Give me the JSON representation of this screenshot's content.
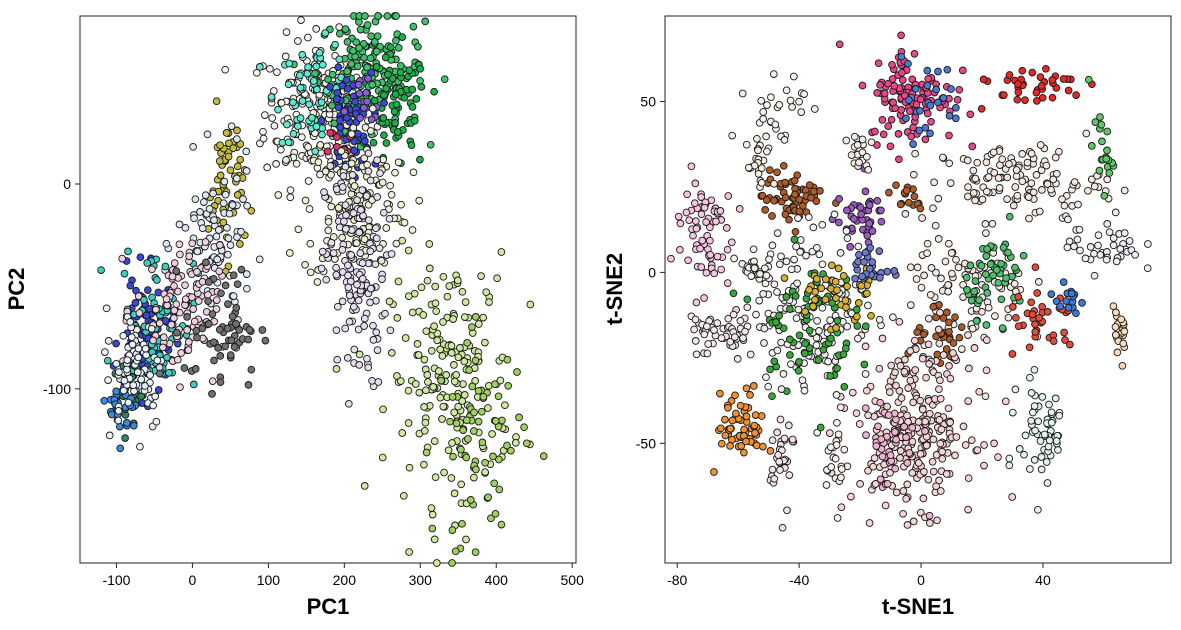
{
  "chart_data": [
    {
      "type": "scatter",
      "xlabel": "PC1",
      "ylabel": "PC2",
      "xlim": [
        -148,
        505
      ],
      "ylim": [
        -185,
        82
      ],
      "xticks": [
        -100,
        0,
        100,
        200,
        300,
        400,
        500
      ],
      "yticks": [
        -100,
        0
      ],
      "xtick_labels": [
        "-100",
        "0",
        "100",
        "200",
        "300",
        "400",
        "500"
      ],
      "ytick_labels": [
        "-100",
        "0"
      ],
      "grid": false,
      "clusters": [
        {
          "color": "#f4f4ec",
          "count": 220,
          "center": [
            165,
            35
          ],
          "spread": [
            35,
            18
          ]
        },
        {
          "color": "#3cc46a",
          "count": 170,
          "center": [
            235,
            55
          ],
          "spread": [
            35,
            14
          ]
        },
        {
          "color": "#1cae48",
          "count": 70,
          "center": [
            270,
            35
          ],
          "spread": [
            20,
            15
          ]
        },
        {
          "color": "#5ee8d0",
          "count": 60,
          "center": [
            160,
            45
          ],
          "spread": [
            25,
            12
          ]
        },
        {
          "color": "#3848d8",
          "count": 60,
          "center": [
            205,
            30
          ],
          "spread": [
            15,
            12
          ]
        },
        {
          "color": "#8a5ed8",
          "count": 15,
          "center": [
            225,
            35
          ],
          "spread": [
            12,
            10
          ]
        },
        {
          "color": "#e83060",
          "count": 10,
          "center": [
            195,
            18
          ],
          "spread": [
            8,
            6
          ]
        },
        {
          "color": "#ecf0d6",
          "count": 150,
          "center": [
            215,
            -10
          ],
          "spread": [
            35,
            20
          ]
        },
        {
          "color": "#e6dcf0",
          "count": 140,
          "center": [
            215,
            -45
          ],
          "spread": [
            20,
            28
          ]
        },
        {
          "color": "#d0e8a0",
          "count": 200,
          "center": [
            340,
            -95
          ],
          "spread": [
            40,
            30
          ]
        },
        {
          "color": "#a0d060",
          "count": 70,
          "center": [
            380,
            -125
          ],
          "spread": [
            30,
            25
          ]
        },
        {
          "color": "#c4bc40",
          "count": 55,
          "center": [
            45,
            0
          ],
          "spread": [
            12,
            18
          ]
        },
        {
          "color": "#dce8f4",
          "count": 90,
          "center": [
            30,
            -30
          ],
          "spread": [
            25,
            20
          ]
        },
        {
          "color": "#3848d8",
          "count": 90,
          "center": [
            -60,
            -75
          ],
          "spread": [
            18,
            15
          ]
        },
        {
          "color": "#3ccfc0",
          "count": 70,
          "center": [
            -45,
            -65
          ],
          "spread": [
            25,
            18
          ]
        },
        {
          "color": "#f0d0e0",
          "count": 110,
          "center": [
            -20,
            -62
          ],
          "spread": [
            28,
            16
          ]
        },
        {
          "color": "#707070",
          "count": 60,
          "center": [
            40,
            -70
          ],
          "spread": [
            25,
            15
          ]
        },
        {
          "color": "#2a8c60",
          "count": 40,
          "center": [
            -85,
            -100
          ],
          "spread": [
            10,
            10
          ]
        },
        {
          "color": "#3a8ae0",
          "count": 25,
          "center": [
            -90,
            -110
          ],
          "spread": [
            10,
            8
          ]
        },
        {
          "color": "#e8f0f8",
          "count": 70,
          "center": [
            -75,
            -90
          ],
          "spread": [
            20,
            15
          ]
        }
      ]
    },
    {
      "type": "scatter",
      "xlabel": "t-SNE1",
      "ylabel": "t-SNE2",
      "xlim": [
        -84,
        82
      ],
      "ylim": [
        -85,
        75
      ],
      "xticks": [
        -80,
        -40,
        0,
        40
      ],
      "yticks": [
        -50,
        0,
        50
      ],
      "xtick_labels": [
        "-80",
        "-40",
        "0",
        "40"
      ],
      "ytick_labels": [
        "-50",
        "0",
        "50"
      ],
      "grid": false,
      "clusters": [
        {
          "color": "#e8488a",
          "count": 110,
          "center": [
            -3,
            52
          ],
          "spread": [
            7,
            7
          ]
        },
        {
          "color": "#4a7ad8",
          "count": 25,
          "center": [
            2,
            50
          ],
          "spread": [
            6,
            6
          ]
        },
        {
          "color": "#e82828",
          "count": 40,
          "center": [
            35,
            55
          ],
          "spread": [
            10,
            3
          ]
        },
        {
          "color": "#f6f0e8",
          "count": 30,
          "center": [
            -48,
            48
          ],
          "spread": [
            5,
            6
          ]
        },
        {
          "color": "#f4e8e0",
          "count": 120,
          "center": [
            32,
            27
          ],
          "spread": [
            14,
            5
          ]
        },
        {
          "color": "#60c860",
          "count": 20,
          "center": [
            59,
            35
          ],
          "spread": [
            2,
            6
          ]
        },
        {
          "color": "#b05a28",
          "count": 60,
          "center": [
            -42,
            22
          ],
          "spread": [
            5,
            4
          ]
        },
        {
          "color": "#f5c4e0",
          "count": 70,
          "center": [
            -72,
            12
          ],
          "spread": [
            5,
            9
          ]
        },
        {
          "color": "#9a5ac0",
          "count": 40,
          "center": [
            -20,
            16
          ],
          "spread": [
            4,
            4
          ]
        },
        {
          "color": "#b05a28",
          "count": 15,
          "center": [
            -5,
            22
          ],
          "spread": [
            3,
            2
          ]
        },
        {
          "color": "#f6eede",
          "count": 20,
          "center": [
            -53,
            30
          ],
          "spread": [
            2,
            5
          ]
        },
        {
          "color": "#f0ecf4",
          "count": 40,
          "center": [
            60,
            8
          ],
          "spread": [
            6,
            4
          ]
        },
        {
          "color": "#f2f2f2",
          "count": 160,
          "center": [
            -35,
            -10
          ],
          "spread": [
            10,
            12
          ]
        },
        {
          "color": "#38a838",
          "count": 70,
          "center": [
            -38,
            -15
          ],
          "spread": [
            8,
            10
          ]
        },
        {
          "color": "#d8b030",
          "count": 40,
          "center": [
            -28,
            -5
          ],
          "spread": [
            7,
            6
          ]
        },
        {
          "color": "#6a7ad0",
          "count": 25,
          "center": [
            -16,
            1
          ],
          "spread": [
            3,
            3
          ]
        },
        {
          "color": "#f4e8e0",
          "count": 100,
          "center": [
            15,
            -5
          ],
          "spread": [
            10,
            10
          ]
        },
        {
          "color": "#50c070",
          "count": 50,
          "center": [
            25,
            0
          ],
          "spread": [
            5,
            6
          ]
        },
        {
          "color": "#b05a28",
          "count": 30,
          "center": [
            8,
            -20
          ],
          "spread": [
            6,
            4
          ]
        },
        {
          "color": "#e84a3a",
          "count": 35,
          "center": [
            40,
            -15
          ],
          "spread": [
            6,
            5
          ]
        },
        {
          "color": "#3a7ad8",
          "count": 15,
          "center": [
            48,
            -8
          ],
          "spread": [
            3,
            2
          ]
        },
        {
          "color": "#f8dcb8",
          "count": 20,
          "center": [
            65,
            -20
          ],
          "spread": [
            1.5,
            5
          ]
        },
        {
          "color": "#f2e8e8",
          "count": 50,
          "center": [
            -65,
            -18
          ],
          "spread": [
            6,
            4
          ]
        },
        {
          "color": "#f4d4d4",
          "count": 260,
          "center": [
            -2,
            -45
          ],
          "spread": [
            10,
            12
          ]
        },
        {
          "color": "#f0b0d0",
          "count": 40,
          "center": [
            -10,
            -50
          ],
          "spread": [
            5,
            7
          ]
        },
        {
          "color": "#f09030",
          "count": 60,
          "center": [
            -59,
            -45
          ],
          "spread": [
            4,
            5
          ]
        },
        {
          "color": "#e0f4ec",
          "count": 60,
          "center": [
            40,
            -47
          ],
          "spread": [
            4,
            8
          ]
        },
        {
          "color": "#f4e0e8",
          "count": 30,
          "center": [
            -46,
            -55
          ],
          "spread": [
            2,
            8
          ]
        },
        {
          "color": "#f4f0e8",
          "count": 25,
          "center": [
            -28,
            -55
          ],
          "spread": [
            1.5,
            7
          ]
        },
        {
          "color": "#f4ece8",
          "count": 20,
          "center": [
            -20,
            35
          ],
          "spread": [
            2,
            3
          ]
        },
        {
          "color": "#f4f0ec",
          "count": 25,
          "center": [
            -55,
            0
          ],
          "spread": [
            3,
            3
          ]
        }
      ]
    }
  ]
}
